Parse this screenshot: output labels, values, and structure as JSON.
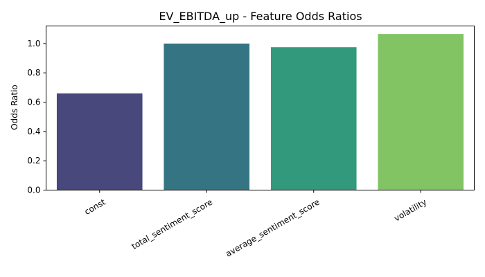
{
  "chart_data": {
    "type": "bar",
    "title": "EV_EBITDA_up - Feature Odds Ratios",
    "xlabel": "",
    "ylabel": "Odds Ratio",
    "categories": [
      "const",
      "total_sentiment_score",
      "average_sentiment_score",
      "volatility"
    ],
    "values": [
      0.66,
      1.0,
      0.975,
      1.065
    ],
    "colors": [
      "#48487c",
      "#357483",
      "#33997c",
      "#82c463"
    ],
    "ylim": [
      0,
      1.12
    ],
    "yticks": [
      0.0,
      0.2,
      0.4,
      0.6,
      0.8,
      1.0
    ],
    "ytick_labels": [
      "0.0",
      "0.2",
      "0.4",
      "0.6",
      "0.8",
      "1.0"
    ],
    "grid": false
  }
}
